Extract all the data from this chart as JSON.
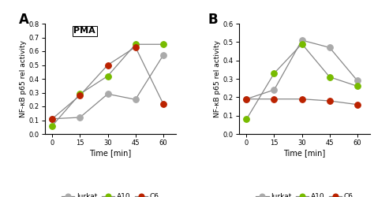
{
  "time": [
    0,
    15,
    30,
    45,
    60
  ],
  "panel_A": {
    "title": "PMA",
    "ylim": [
      0,
      0.8
    ],
    "yticks": [
      0,
      0.1,
      0.2,
      0.3,
      0.4,
      0.5,
      0.6,
      0.7,
      0.8
    ],
    "Jurkat": [
      0.11,
      0.12,
      0.29,
      0.25,
      0.57
    ],
    "A10": [
      0.06,
      0.29,
      0.42,
      0.65,
      0.65
    ],
    "C6": [
      0.11,
      0.28,
      0.5,
      0.63,
      0.22
    ]
  },
  "panel_B": {
    "ylim": [
      0,
      0.6
    ],
    "yticks": [
      0,
      0.1,
      0.2,
      0.3,
      0.4,
      0.5,
      0.6
    ],
    "Jurkat": [
      0.19,
      0.24,
      0.51,
      0.47,
      0.29
    ],
    "A10": [
      0.08,
      0.33,
      0.49,
      0.31,
      0.26
    ],
    "C6": [
      0.19,
      0.19,
      0.19,
      0.18,
      0.16
    ]
  },
  "colors": {
    "Jurkat": "#aaaaaa",
    "A10": "#77bb00",
    "C6": "#bb2200"
  },
  "line_color": "#888888",
  "xlabel": "Time [min]",
  "ylabel": "NF-κB p65 rel activity",
  "legend_labels": [
    "Jurkat",
    "A10",
    "C6"
  ]
}
